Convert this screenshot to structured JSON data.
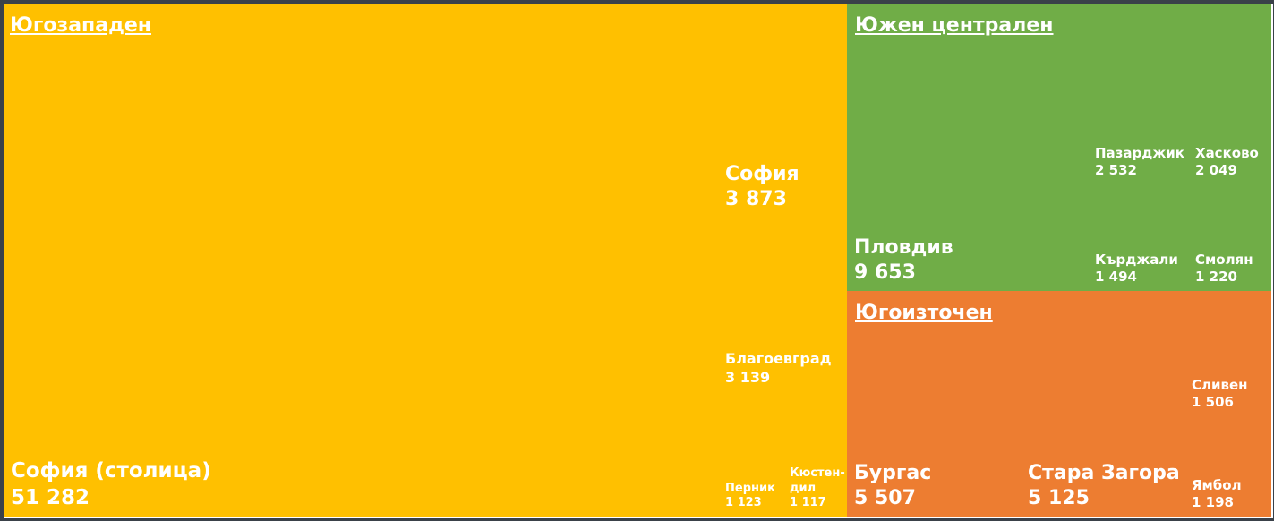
{
  "chart_data": {
    "type": "treemap",
    "colors": {
      "Югозападен": "#ffc000",
      "Южен централен": "#70ad47",
      "Югоизточен": "#ed7d31",
      "background": "#3a4149"
    },
    "regions": [
      {
        "name": "Югозападен",
        "color": "#ffc000",
        "items": [
          {
            "name": "София (столица)",
            "label": "51 282",
            "value": 51282
          },
          {
            "name": "София",
            "label": "3 873",
            "value": 3873
          },
          {
            "name": "Благоевград",
            "label": "3 139",
            "value": 3139
          },
          {
            "name": "Перник",
            "label": "1 123",
            "value": 1123
          },
          {
            "name": "Кюстендил",
            "label": "1 117",
            "value": 1117
          }
        ]
      },
      {
        "name": "Южен централен",
        "color": "#70ad47",
        "items": [
          {
            "name": "Пловдив",
            "label": "9 653",
            "value": 9653
          },
          {
            "name": "Пазарджик",
            "label": "2 532",
            "value": 2532
          },
          {
            "name": "Хасково",
            "label": "2 049",
            "value": 2049
          },
          {
            "name": "Кърджали",
            "label": "1 494",
            "value": 1494
          },
          {
            "name": "Смолян",
            "label": "1 220",
            "value": 1220
          }
        ]
      },
      {
        "name": "Югоизточен",
        "color": "#ed7d31",
        "items": [
          {
            "name": "Бургас",
            "label": "5 507",
            "value": 5507
          },
          {
            "name": "Стара Загора",
            "label": "5 125",
            "value": 5125
          },
          {
            "name": "Сливен",
            "label": "1 506",
            "value": 1506
          },
          {
            "name": "Ямбол",
            "label": "1 198",
            "value": 1198
          }
        ]
      }
    ]
  }
}
